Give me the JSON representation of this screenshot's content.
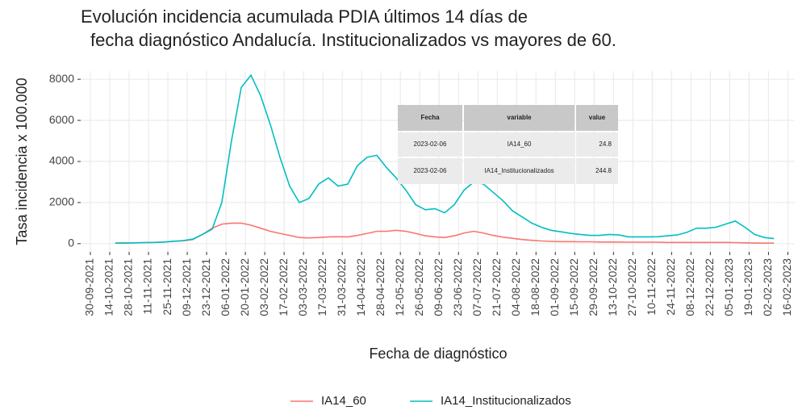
{
  "chart_data": {
    "type": "line",
    "title": [
      "Evolución incidencia acumulada PDIA últimos 14 días de",
      "fecha diagnóstico Andalucía. Institucionalizados vs mayores de 60."
    ],
    "xlabel": "Fecha de diagnóstico",
    "ylabel": "Tasa incidencia x 100.000",
    "x": [
      "18-10-2021",
      "25-10-2021",
      "01-11-2021",
      "08-11-2021",
      "15-11-2021",
      "22-11-2021",
      "29-11-2021",
      "06-12-2021",
      "13-12-2021",
      "20-12-2021",
      "27-12-2021",
      "03-01-2022",
      "10-01-2022",
      "17-01-2022",
      "24-01-2022",
      "31-01-2022",
      "07-02-2022",
      "14-02-2022",
      "21-02-2022",
      "28-02-2022",
      "07-03-2022",
      "14-03-2022",
      "21-03-2022",
      "28-03-2022",
      "04-04-2022",
      "11-04-2022",
      "18-04-2022",
      "25-04-2022",
      "02-05-2022",
      "09-05-2022",
      "16-05-2022",
      "23-05-2022",
      "30-05-2022",
      "06-06-2022",
      "13-06-2022",
      "20-06-2022",
      "27-06-2022",
      "04-07-2022",
      "11-07-2022",
      "18-07-2022",
      "25-07-2022",
      "01-08-2022",
      "08-08-2022",
      "15-08-2022",
      "22-08-2022",
      "29-08-2022",
      "05-09-2022",
      "12-09-2022",
      "19-09-2022",
      "26-09-2022",
      "03-10-2022",
      "10-10-2022",
      "17-10-2022",
      "24-10-2022",
      "31-10-2022",
      "07-11-2022",
      "14-11-2022",
      "21-11-2022",
      "28-11-2022",
      "05-12-2022",
      "12-12-2022",
      "19-12-2022",
      "26-12-2022",
      "02-01-2023",
      "09-01-2023",
      "16-01-2023",
      "23-01-2023",
      "30-01-2023",
      "06-02-2023"
    ],
    "series": [
      {
        "name": "IA14_60",
        "color": "#F8766D",
        "values": [
          30,
          30,
          40,
          50,
          60,
          70,
          110,
          140,
          200,
          450,
          750,
          950,
          1000,
          1000,
          900,
          750,
          600,
          500,
          400,
          300,
          280,
          300,
          330,
          340,
          330,
          400,
          500,
          600,
          600,
          650,
          600,
          500,
          380,
          330,
          300,
          380,
          520,
          600,
          520,
          400,
          320,
          260,
          200,
          160,
          130,
          110,
          100,
          100,
          90,
          90,
          80,
          80,
          80,
          70,
          70,
          70,
          70,
          60,
          60,
          60,
          60,
          60,
          60,
          60,
          50,
          40,
          30,
          25,
          24.8
        ]
      },
      {
        "name": "IA14_Institucionalizados",
        "color": "#00BFC4",
        "values": [
          30,
          30,
          40,
          50,
          60,
          80,
          120,
          150,
          220,
          450,
          700,
          2000,
          5000,
          7600,
          8200,
          7200,
          5800,
          4200,
          2800,
          2000,
          2200,
          2900,
          3200,
          2800,
          2900,
          3800,
          4200,
          4300,
          3700,
          3200,
          2600,
          1900,
          1650,
          1700,
          1500,
          1900,
          2600,
          3000,
          2900,
          2500,
          2100,
          1600,
          1300,
          1000,
          800,
          650,
          580,
          500,
          450,
          400,
          400,
          450,
          420,
          330,
          330,
          330,
          340,
          380,
          420,
          550,
          750,
          750,
          800,
          950,
          1100,
          800,
          450,
          300,
          244.8
        ]
      }
    ],
    "xlim": [
      "23-09-2021",
      "21-02-2023"
    ],
    "xticks": [
      "30-09-2021",
      "14-10-2021",
      "28-10-2021",
      "11-11-2021",
      "25-11-2021",
      "09-12-2021",
      "23-12-2021",
      "06-01-2022",
      "20-01-2022",
      "03-02-2022",
      "17-02-2022",
      "03-03-2022",
      "17-03-2022",
      "31-03-2022",
      "14-04-2022",
      "28-04-2022",
      "12-05-2022",
      "26-05-2022",
      "09-06-2022",
      "23-06-2022",
      "07-07-2022",
      "21-07-2022",
      "04-08-2022",
      "18-08-2022",
      "01-09-2022",
      "15-09-2022",
      "29-09-2022",
      "13-10-2022",
      "27-10-2022",
      "10-11-2022",
      "24-11-2022",
      "08-12-2022",
      "22-12-2022",
      "05-01-2023",
      "19-01-2023",
      "02-02-2023",
      "16-02-2023"
    ],
    "ylim": [
      -400,
      8400
    ],
    "yticks": [
      0,
      2000,
      4000,
      6000,
      8000
    ],
    "grid": true,
    "legend": "bottom",
    "table": {
      "columns": [
        "Fecha",
        "variable",
        "value"
      ],
      "rows": [
        [
          "2023-02-06",
          "IA14_60",
          24.8
        ],
        [
          "2023-02-06",
          "IA14_Institucionalizados",
          244.8
        ]
      ]
    }
  }
}
